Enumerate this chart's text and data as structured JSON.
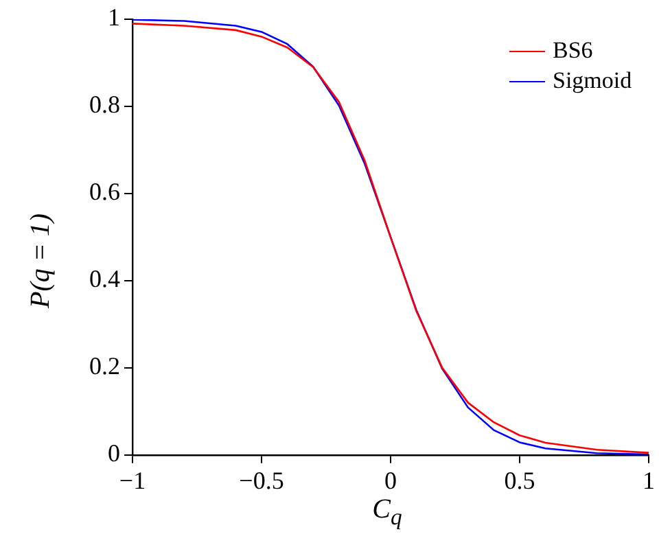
{
  "chart_data": {
    "type": "line",
    "xlabel": "C$_{q}$",
    "ylabel": "P(q = 1)",
    "x": [
      -1,
      -0.8,
      -0.6,
      -0.5,
      -0.4,
      -0.3,
      -0.2,
      -0.1,
      0,
      0.1,
      0.2,
      0.3,
      0.4,
      0.5,
      0.6,
      0.8,
      1
    ],
    "series": [
      {
        "name": "BS6",
        "color": "#ff0000",
        "values": [
          0.99,
          0.985,
          0.975,
          0.96,
          0.935,
          0.89,
          0.81,
          0.675,
          0.5,
          0.33,
          0.2,
          0.12,
          0.075,
          0.045,
          0.028,
          0.012,
          0.005
        ]
      },
      {
        "name": "Sigmoid",
        "color": "#0000ff",
        "values": [
          0.999,
          0.996,
          0.985,
          0.971,
          0.943,
          0.891,
          0.802,
          0.668,
          0.5,
          0.332,
          0.198,
          0.109,
          0.057,
          0.029,
          0.015,
          0.004,
          0.001
        ]
      }
    ],
    "xlim": [
      -1,
      1
    ],
    "xticks": [
      -1,
      -0.5,
      0,
      0.5,
      1
    ],
    "ylim": [
      0,
      1
    ],
    "yticks": [
      0,
      0.2,
      0.4,
      0.6,
      0.8,
      1
    ],
    "grid": false,
    "legend": "top right",
    "marker": "none",
    "line_style": "solid"
  }
}
